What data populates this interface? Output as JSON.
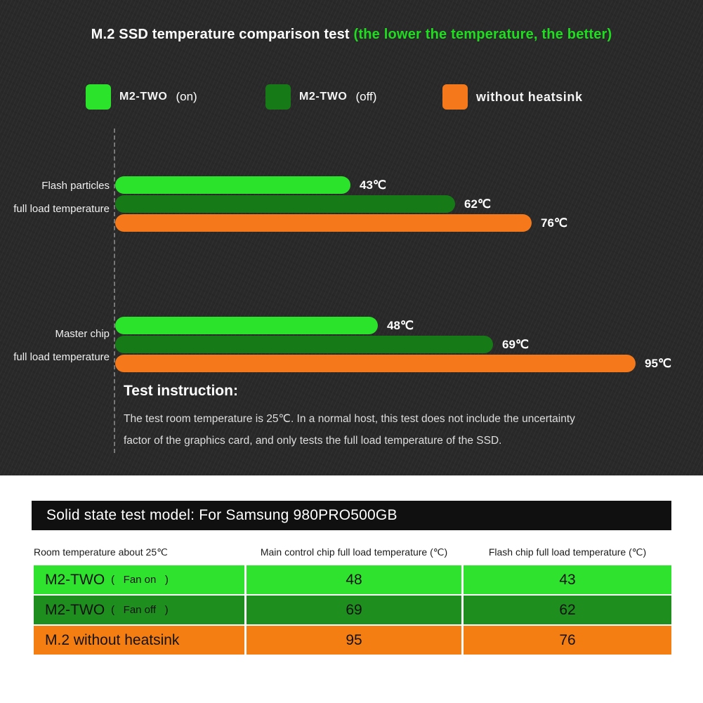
{
  "title": {
    "main": "M.2 SSD temperature comparison test ",
    "highlight": "(the lower the temperature, the better)"
  },
  "legend": [
    {
      "name": "M2-TWO",
      "state": "(on)",
      "color": "#2be32b"
    },
    {
      "name": "M2-TWO",
      "state": "(off)",
      "color": "#167a16"
    },
    {
      "name": "without heatsink",
      "state": "",
      "color": "#f5791a"
    }
  ],
  "chart_data": {
    "type": "bar",
    "orientation": "horizontal",
    "unit": "℃",
    "axis_max": 100,
    "categories": [
      "Flash particles full load temperature",
      "Master chip full load temperature"
    ],
    "series": [
      {
        "name": "M2-TWO (on)",
        "values": [
          43,
          48
        ]
      },
      {
        "name": "M2-TWO (off)",
        "values": [
          62,
          69
        ]
      },
      {
        "name": "without heatsink",
        "values": [
          76,
          95
        ]
      }
    ],
    "groups": [
      {
        "category_line1": "Flash particles",
        "category_line2": "full load temperature",
        "bars": [
          {
            "series": "M2-TWO (on)",
            "value": 43,
            "label": "43℃",
            "color": "#2be32b"
          },
          {
            "series": "M2-TWO (off)",
            "value": 62,
            "label": "62℃",
            "color": "#167a16"
          },
          {
            "series": "without heatsink",
            "value": 76,
            "label": "76℃",
            "color": "#f5791a"
          }
        ]
      },
      {
        "category_line1": "Master chip",
        "category_line2": "full load temperature",
        "bars": [
          {
            "series": "M2-TWO (on)",
            "value": 48,
            "label": "48℃",
            "color": "#2be32b"
          },
          {
            "series": "M2-TWO (off)",
            "value": 69,
            "label": "69℃",
            "color": "#167a16"
          },
          {
            "series": "without heatsink",
            "value": 95,
            "label": "95℃",
            "color": "#f5791a"
          }
        ]
      }
    ]
  },
  "instruction": {
    "heading": "Test instruction:",
    "lines": [
      "The test room temperature is 25℃. In a normal host, this test does not include the uncertainty",
      "factor of the graphics card, and only tests the full load temperature of the SSD."
    ]
  },
  "table": {
    "banner": "Solid state test model: For Samsung 980PRO500GB",
    "headers": [
      "Room temperature about 25℃",
      "Main control chip full load temperature (℃)",
      "Flash chip full load temperature (℃)"
    ],
    "rows": [
      {
        "model": "M2-TWO",
        "fan": "(   Fan on   )",
        "main": "48",
        "flash": "43",
        "color": "#2ee22e"
      },
      {
        "model": "M2-TWO",
        "fan": "(   Fan off   )",
        "main": "69",
        "flash": "62",
        "color": "#1e8e1e"
      },
      {
        "model": "M.2 without heatsink",
        "fan": "",
        "main": "95",
        "flash": "76",
        "color": "#f57e12"
      }
    ]
  }
}
